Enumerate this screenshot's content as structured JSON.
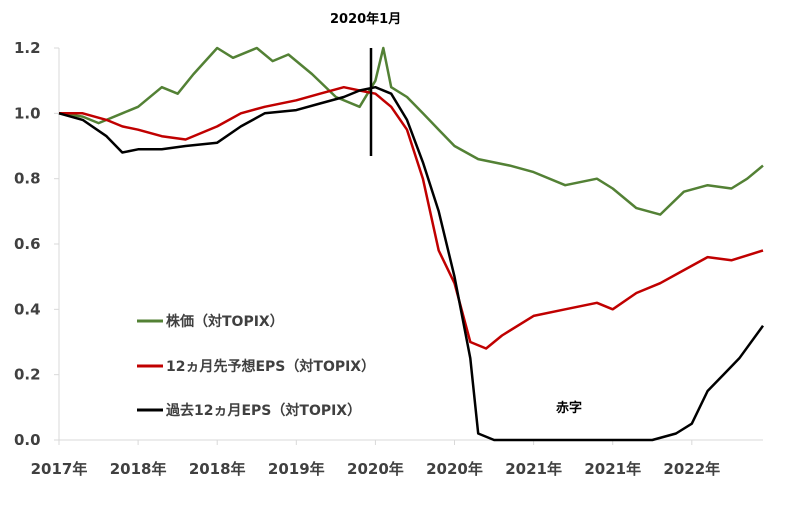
{
  "chart_data": {
    "type": "line",
    "title": "",
    "xlabel": "",
    "ylabel": "",
    "ylim": [
      0,
      1.2
    ],
    "x_tick_labels": [
      "2017年",
      "2018年",
      "2018年",
      "2019年",
      "2020年",
      "2020年",
      "2021年",
      "2021年",
      "2022年"
    ],
    "y_tick_labels": [
      "0.0",
      "0.2",
      "0.4",
      "0.6",
      "0.8",
      "1.0",
      "1.2"
    ],
    "y_ticks": [
      0.0,
      0.2,
      0.4,
      0.6,
      0.8,
      1.0,
      1.2
    ],
    "grid": false,
    "legend_position": "left-middle",
    "annotations": {
      "marker_label": "2020年1月",
      "loss_label": "赤字"
    },
    "series": [
      {
        "name": "株価（対TOPIX）",
        "color": "#538135",
        "x": [
          0,
          0.3,
          0.5,
          0.8,
          1.0,
          1.3,
          1.5,
          1.7,
          2.0,
          2.2,
          2.5,
          2.7,
          2.9,
          3.2,
          3.5,
          3.8,
          4.0,
          4.1,
          4.2,
          4.4,
          4.6,
          4.8,
          5.0,
          5.3,
          5.7,
          6.0,
          6.4,
          6.8,
          7.0,
          7.3,
          7.6,
          7.9,
          8.2,
          8.5,
          8.7,
          8.9
        ],
        "y": [
          1.0,
          0.99,
          0.97,
          1.0,
          1.02,
          1.08,
          1.06,
          1.12,
          1.2,
          1.17,
          1.2,
          1.16,
          1.18,
          1.12,
          1.05,
          1.02,
          1.1,
          1.2,
          1.08,
          1.05,
          1.0,
          0.95,
          0.9,
          0.86,
          0.84,
          0.82,
          0.78,
          0.8,
          0.77,
          0.71,
          0.69,
          0.76,
          0.78,
          0.77,
          0.8,
          0.84
        ]
      },
      {
        "name": "12ヵ月先予想EPS（対TOPIX）",
        "color": "#c00000",
        "x": [
          0,
          0.3,
          0.6,
          0.8,
          1.0,
          1.3,
          1.6,
          2.0,
          2.3,
          2.6,
          3.0,
          3.3,
          3.6,
          3.8,
          4.0,
          4.2,
          4.4,
          4.6,
          4.8,
          5.0,
          5.2,
          5.4,
          5.6,
          6.0,
          6.4,
          6.8,
          7.0,
          7.3,
          7.6,
          7.9,
          8.2,
          8.5,
          8.9
        ],
        "y": [
          1.0,
          1.0,
          0.98,
          0.96,
          0.95,
          0.93,
          0.92,
          0.96,
          1.0,
          1.02,
          1.04,
          1.06,
          1.08,
          1.07,
          1.06,
          1.02,
          0.95,
          0.8,
          0.58,
          0.48,
          0.3,
          0.28,
          0.32,
          0.38,
          0.4,
          0.42,
          0.4,
          0.45,
          0.48,
          0.52,
          0.56,
          0.55,
          0.58
        ]
      },
      {
        "name": "過去12ヵ月EPS（対TOPIX）",
        "color": "#000000",
        "x": [
          0,
          0.3,
          0.6,
          0.8,
          1.0,
          1.3,
          1.6,
          2.0,
          2.3,
          2.6,
          3.0,
          3.3,
          3.6,
          3.8,
          4.0,
          4.2,
          4.4,
          4.6,
          4.8,
          5.0,
          5.2,
          5.3,
          5.5,
          6.0,
          6.5,
          7.0,
          7.5,
          7.8,
          8.0,
          8.2,
          8.4,
          8.6,
          8.9
        ],
        "y": [
          1.0,
          0.98,
          0.93,
          0.88,
          0.89,
          0.89,
          0.9,
          0.91,
          0.96,
          1.0,
          1.01,
          1.03,
          1.05,
          1.07,
          1.08,
          1.06,
          0.98,
          0.85,
          0.7,
          0.5,
          0.25,
          0.02,
          0.0,
          0.0,
          0.0,
          0.0,
          0.0,
          0.02,
          0.05,
          0.15,
          0.2,
          0.25,
          0.35
        ]
      }
    ]
  }
}
